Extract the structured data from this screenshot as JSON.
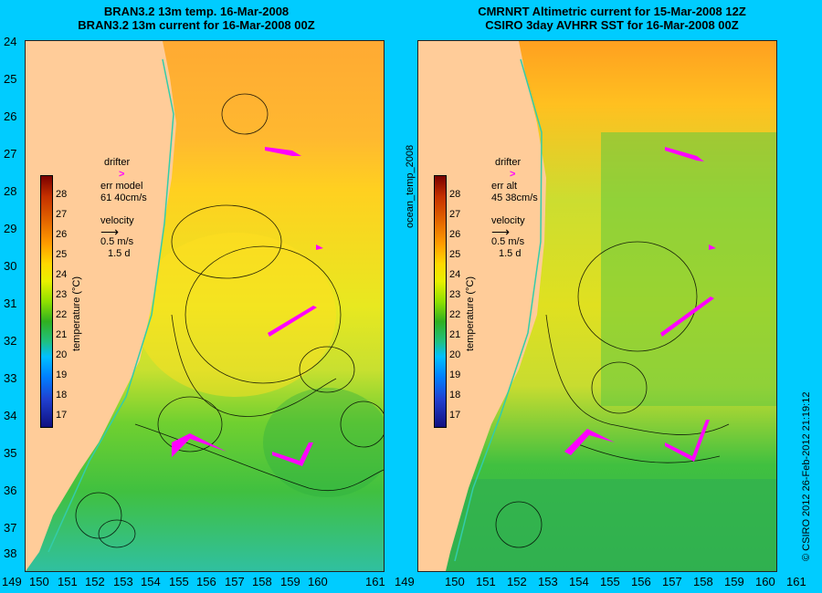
{
  "left_title": {
    "line1": "BRAN3.2 13m temp. 16-Mar-2008",
    "line2": "BRAN3.2 13m current for 16-Mar-2008 00Z"
  },
  "right_title": {
    "line1": "CMRNRT Altimetric current for 15-Mar-2008 12Z",
    "line2": "CSIRO 3day AVHRR SST for 16-Mar-2008 00Z"
  },
  "y_axis_labels": [
    "24",
    "25",
    "26",
    "27",
    "28",
    "29",
    "30",
    "31",
    "32",
    "33",
    "34",
    "35",
    "36",
    "37",
    "38"
  ],
  "x_axis_labels": [
    "149",
    "150",
    "151",
    "152",
    "153",
    "154",
    "155",
    "156",
    "157",
    "158",
    "159",
    "160",
    "161"
  ],
  "colorbar": {
    "label": "temperature (°C)",
    "ticks": [
      "28",
      "27",
      "26",
      "25",
      "24",
      "23",
      "22",
      "21",
      "20",
      "19",
      "18",
      "17"
    ]
  },
  "left_legend": {
    "drifter": "drifter",
    "drifter_icon": ">",
    "err_label": "err model",
    "err_value": "61 40cm/s",
    "velocity": "velocity",
    "vel_scale": "0.5 m/s",
    "vel_time": "1.5 d"
  },
  "right_legend": {
    "drifter": "drifter",
    "drifter_icon": ">",
    "err_label": "err alt",
    "err_value": "45 38cm/s",
    "velocity": "velocity",
    "vel_scale": "0.5 m/s",
    "vel_time": "1.5 d"
  },
  "center_label": "ocean_temp_2008",
  "credit": "© CSIRO 2012   26-Feb-2012 21:19:12",
  "colors": {
    "background": "#00ccff",
    "land": "#ffcc99",
    "drifter": "#ff00ff"
  }
}
